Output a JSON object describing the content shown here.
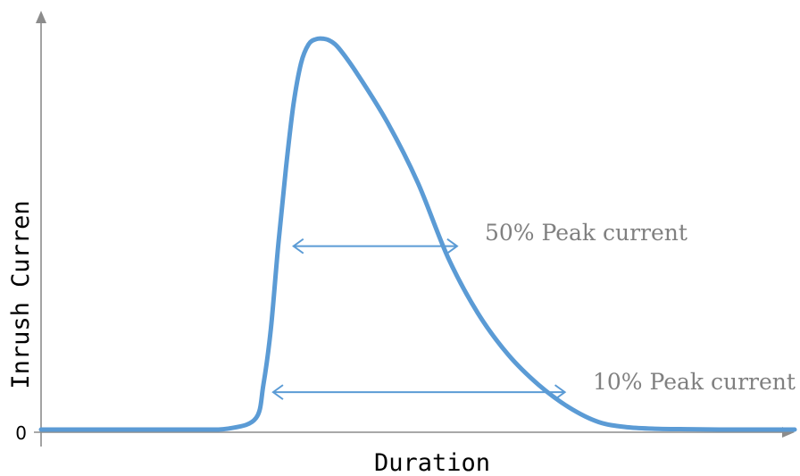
{
  "chart_data": {
    "type": "line",
    "title": "",
    "xlabel": "Duration",
    "ylabel": "Inrush Curren",
    "xlim": [
      0,
      100
    ],
    "ylim": [
      0,
      1.12
    ],
    "y_ticks": [
      {
        "value": 0,
        "label": "0"
      }
    ],
    "grid": false,
    "legend": "none",
    "series": [
      {
        "color": "#5b9bd5",
        "x": [
          0,
          10,
          20,
          25,
          28.5,
          29.5,
          30.5,
          31.5,
          32.5,
          33.5,
          34.5,
          35.5,
          36.5,
          37.5,
          38.3,
          39.5,
          42,
          46,
          50,
          54,
          58,
          62,
          66,
          70,
          74,
          78,
          82,
          86,
          90,
          95,
          100
        ],
        "y": [
          0,
          0,
          0,
          0.003,
          0.03,
          0.12,
          0.27,
          0.5,
          0.7,
          0.87,
          0.98,
          1.03,
          1.044,
          1.045,
          1.04,
          1.02,
          0.95,
          0.82,
          0.66,
          0.46,
          0.31,
          0.2,
          0.12,
          0.06,
          0.02,
          0.006,
          0.002,
          0.001,
          0,
          0,
          0
        ]
      }
    ],
    "annotations": [
      {
        "text": "50% Peak current",
        "level": 0.5,
        "x_from": 33.5,
        "x_to": 55.2
      },
      {
        "text": "10% Peak current",
        "level": 0.1,
        "x_from": 30.8,
        "x_to": 69.5
      }
    ]
  },
  "colors": {
    "axis": "#8c8c8c",
    "curve": "#5b9bd5",
    "annotation_text": "#808080"
  }
}
